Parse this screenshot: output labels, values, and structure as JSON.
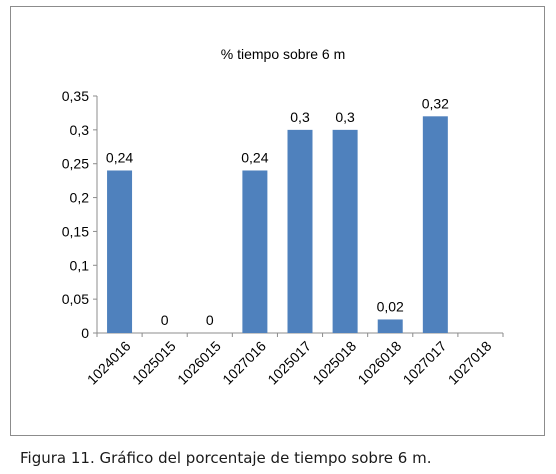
{
  "chart_data": {
    "type": "bar",
    "title": "% tiempo sobre 6 m",
    "xlabel": "",
    "ylabel": "",
    "categories": [
      "1024016",
      "1025015",
      "1026015",
      "1027016",
      "1025017",
      "1025018",
      "1026018",
      "1027017",
      "1027018"
    ],
    "values": [
      0.24,
      0,
      0,
      0.24,
      0.3,
      0.3,
      0.02,
      0.32,
      null
    ],
    "data_labels": [
      "0,24",
      "0",
      "0",
      "0,24",
      "0,3",
      "0,3",
      "0,02",
      "0,32",
      ""
    ],
    "ylim": [
      0,
      0.35
    ],
    "yticks": [
      0,
      0.05,
      0.1,
      0.15,
      0.2,
      0.25,
      0.3,
      0.35
    ],
    "ytick_labels": [
      "0",
      "0,05",
      "0,1",
      "0,15",
      "0,2",
      "0,25",
      "0,3",
      "0,35"
    ],
    "grid": false,
    "legend": "none",
    "bar_color": "#4f81bd"
  },
  "caption": {
    "label": "Figura 11.",
    "text": " Gráfico del porcentaje de tiempo sobre 6 m."
  }
}
